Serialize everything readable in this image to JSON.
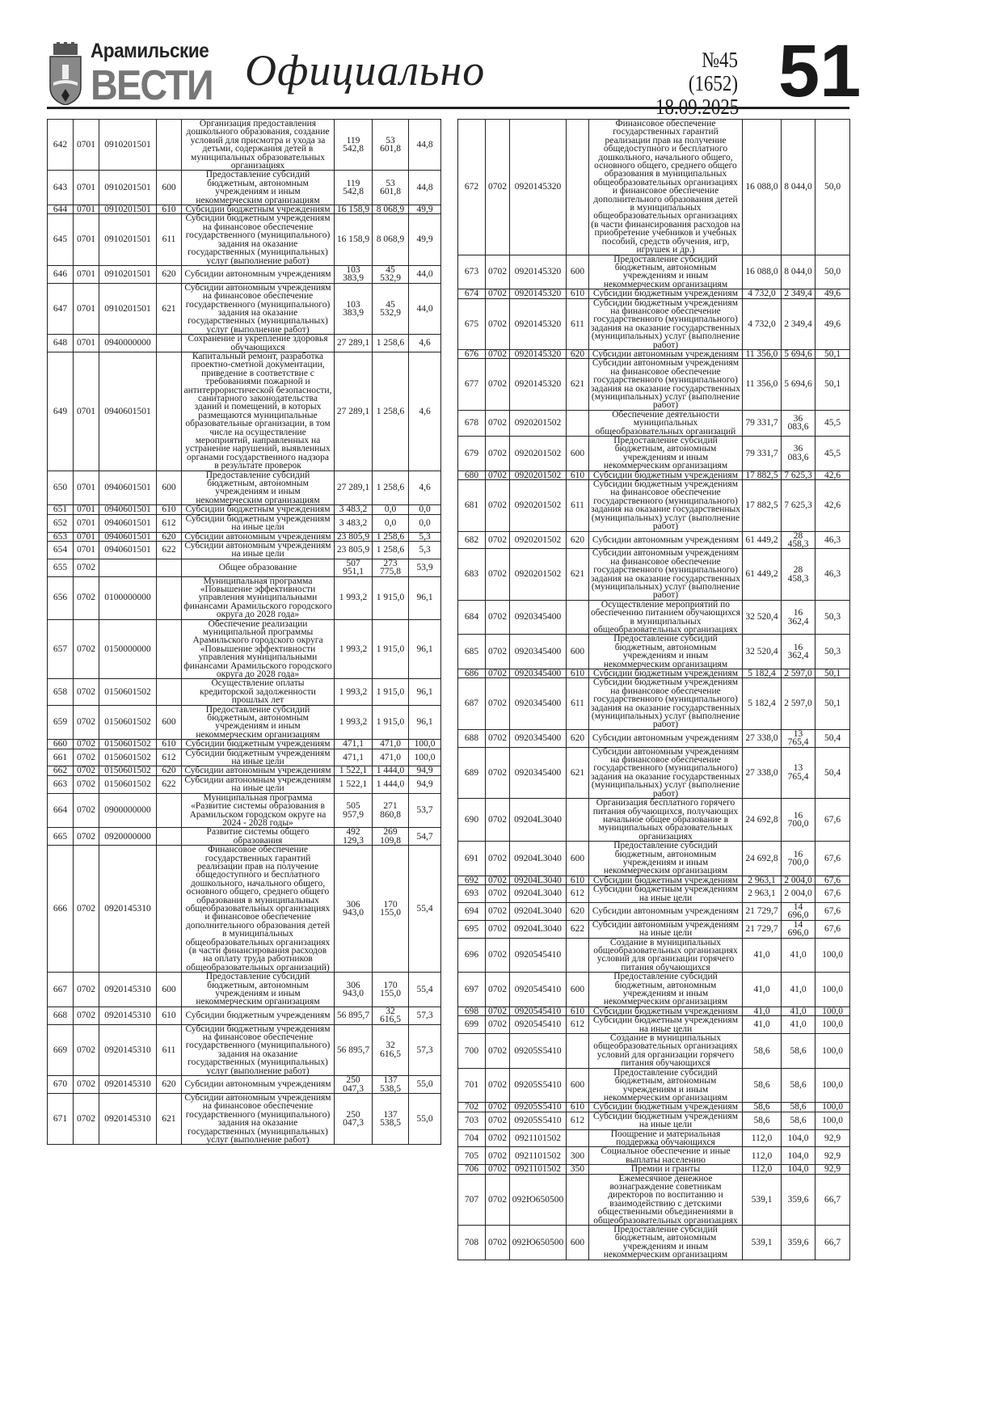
{
  "header": {
    "logo_line1": "Арамильские",
    "logo_line2": "ВЕСТИ",
    "section": "Официально",
    "issue": "№45 (1652)",
    "date": "18.09.2025",
    "page": "51"
  },
  "left_table": {
    "rows": [
      [
        "642",
        "0701",
        "0910201501",
        "",
        "Организация предоставления дошкольного образования, создание условий для присмотра и ухода за детьми, содержания детей в муниципальных образовательных организациях",
        "119 542,8",
        "53 601,8",
        "44,8"
      ],
      [
        "643",
        "0701",
        "0910201501",
        "600",
        "Предоставление субсидий бюджетным, автономным учреждениям и иным некоммерческим организациям",
        "119 542,8",
        "53 601,8",
        "44,8"
      ],
      [
        "644",
        "0701",
        "0910201501",
        "610",
        "Субсидии бюджетным учреждениям",
        "16 158,9",
        "8 068,9",
        "49,9"
      ],
      [
        "645",
        "0701",
        "0910201501",
        "611",
        "Субсидии бюджетным учреждениям на финансовое обеспечение государственного (муниципального) задания на оказание государственных (муниципальных) услуг (выполнение работ)",
        "16 158,9",
        "8 068,9",
        "49,9"
      ],
      [
        "646",
        "0701",
        "0910201501",
        "620",
        "Субсидии автономным учреждениям",
        "103 383,9",
        "45 532,9",
        "44,0"
      ],
      [
        "647",
        "0701",
        "0910201501",
        "621",
        "Субсидии автономным учреждениям на финансовое обеспечение государственного (муниципального) задания на оказание государственных (муниципальных) услуг (выполнение работ)",
        "103 383,9",
        "45 532,9",
        "44,0"
      ],
      [
        "648",
        "0701",
        "0940000000",
        "",
        "Сохранение и укрепление здоровья обучающихся",
        "27 289,1",
        "1 258,6",
        "4,6"
      ],
      [
        "649",
        "0701",
        "0940601501",
        "",
        "Капитальный ремонт, разработка проектно-сметной документации, приведение в соответствие с требованиями пожарной и антитеррористической безопасности, санитарного законодательства зданий и помещений, в которых размещаются муниципальные образовательные организации, в том числе на осуществление мероприятий, направленных на устранение нарушений, выявленных органами государственного надзора в результате проверок",
        "27 289,1",
        "1 258,6",
        "4,6"
      ],
      [
        "650",
        "0701",
        "0940601501",
        "600",
        "Предоставление субсидий бюджетным, автономным учреждениям и иным некоммерческим организациям",
        "27 289,1",
        "1 258,6",
        "4,6"
      ],
      [
        "651",
        "0701",
        "0940601501",
        "610",
        "Субсидии бюджетным учреждениям",
        "3 483,2",
        "0,0",
        "0,0"
      ],
      [
        "652",
        "0701",
        "0940601501",
        "612",
        "Субсидии бюджетным учреждениям на иные цели",
        "3 483,2",
        "0,0",
        "0,0"
      ],
      [
        "653",
        "0701",
        "0940601501",
        "620",
        "Субсидии автономным учреждениям",
        "23 805,9",
        "1 258,6",
        "5,3"
      ],
      [
        "654",
        "0701",
        "0940601501",
        "622",
        "Субсидии автономным учреждениям на иные цели",
        "23 805,9",
        "1 258,6",
        "5,3"
      ],
      [
        "655",
        "0702",
        "",
        "",
        "Общее образование",
        "507 951,1",
        "273 775,8",
        "53,9"
      ],
      [
        "656",
        "0702",
        "0100000000",
        "",
        "Муниципальная программа «Повышение эффективности управления муниципальными финансами Арамильского городского округа до 2028 года»",
        "1 993,2",
        "1 915,0",
        "96,1"
      ],
      [
        "657",
        "0702",
        "0150000000",
        "",
        "Обеспечение реализации муниципальной программы Арамильского городского округа «Повышение эффективности управления муниципальными финансами Арамильского городского округа до 2028 года»",
        "1 993,2",
        "1 915,0",
        "96,1"
      ],
      [
        "658",
        "0702",
        "0150601502",
        "",
        "Осуществление оплаты кредиторской задолженности прошлых лет",
        "1 993,2",
        "1 915,0",
        "96,1"
      ],
      [
        "659",
        "0702",
        "0150601502",
        "600",
        "Предоставление субсидий бюджетным, автономным учреждениям и иным некоммерческим организациям",
        "1 993,2",
        "1 915,0",
        "96,1"
      ],
      [
        "660",
        "0702",
        "0150601502",
        "610",
        "Субсидии бюджетным учреждениям",
        "471,1",
        "471,0",
        "100,0"
      ],
      [
        "661",
        "0702",
        "0150601502",
        "612",
        "Субсидии бюджетным учреждениям на иные цели",
        "471,1",
        "471,0",
        "100,0"
      ],
      [
        "662",
        "0702",
        "0150601502",
        "620",
        "Субсидии автономным учреждениям",
        "1 522,1",
        "1 444,0",
        "94,9"
      ],
      [
        "663",
        "0702",
        "0150601502",
        "622",
        "Субсидии автономным учреждениям на иные цели",
        "1 522,1",
        "1 444,0",
        "94,9"
      ],
      [
        "664",
        "0702",
        "0900000000",
        "",
        "Муниципальная программа «Развитие системы образования в Арамильском городском округе на 2024 - 2028 годы»",
        "505 957,9",
        "271 860,8",
        "53,7"
      ],
      [
        "665",
        "0702",
        "0920000000",
        "",
        "Развитие системы общего образования",
        "492 129,3",
        "269 109,8",
        "54,7"
      ],
      [
        "666",
        "0702",
        "0920145310",
        "",
        "Финансовое обеспечение государственных гарантий реализации прав на получение общедоступного и бесплатного дошкольного, начального общего, основного общего, среднего общего образования в муниципальных общеобразовательных организациях и финансовое обеспечение дополнительного образования детей в муниципальных общеобразовательных организациях (в части финансирования расходов на оплату труда работников общеобразовательных организаций)",
        "306 943,0",
        "170 155,0",
        "55,4"
      ],
      [
        "667",
        "0702",
        "0920145310",
        "600",
        "Предоставление субсидий бюджетным, автономным учреждениям и иным некоммерческим организациям",
        "306 943,0",
        "170 155,0",
        "55,4"
      ],
      [
        "668",
        "0702",
        "0920145310",
        "610",
        "Субсидии бюджетным учреждениям",
        "56 895,7",
        "32 616,5",
        "57,3"
      ],
      [
        "669",
        "0702",
        "0920145310",
        "611",
        "Субсидии бюджетным учреждениям на финансовое обеспечение государственного (муниципального) задания на оказание государственных (муниципальных) услуг (выполнение работ)",
        "56 895,7",
        "32 616,5",
        "57,3"
      ],
      [
        "670",
        "0702",
        "0920145310",
        "620",
        "Субсидии автономным учреждениям",
        "250 047,3",
        "137 538,5",
        "55,0"
      ],
      [
        "671",
        "0702",
        "0920145310",
        "621",
        "Субсидии автономным учреждениям на финансовое обеспечение государственного (муниципального) задания на оказание государственных (муниципальных) услуг (выполнение работ)",
        "250 047,3",
        "137 538,5",
        "55,0"
      ]
    ]
  },
  "right_table": {
    "rows": [
      [
        "672",
        "0702",
        "0920145320",
        "",
        "Финансовое обеспечение государственных гарантий реализации прав на получение общедоступного и бесплатного дошкольного, начального общего, основного общего, среднего общего образования в муниципальных общеобразовательных организациях и финансовое обеспечение дополнительного образования детей в муниципальных общеобразовательных организациях (в части финансирования расходов на приобретение учебников и учебных пособий, средств обучения, игр, игрушек и др.)",
        "16 088,0",
        "8 044,0",
        "50,0"
      ],
      [
        "673",
        "0702",
        "0920145320",
        "600",
        "Предоставление субсидий бюджетным, автономным учреждениям и иным некоммерческим организациям",
        "16 088,0",
        "8 044,0",
        "50,0"
      ],
      [
        "674",
        "0702",
        "0920145320",
        "610",
        "Субсидии бюджетным учреждениям",
        "4 732,0",
        "2 349,4",
        "49,6"
      ],
      [
        "675",
        "0702",
        "0920145320",
        "611",
        "Субсидии бюджетным учреждениям на финансовое обеспечение государственного (муниципального) задания на оказание государственных (муниципальных) услуг (выполнение работ)",
        "4 732,0",
        "2 349,4",
        "49,6"
      ],
      [
        "676",
        "0702",
        "0920145320",
        "620",
        "Субсидии автономным учреждениям",
        "11 356,0",
        "5 694,6",
        "50,1"
      ],
      [
        "677",
        "0702",
        "0920145320",
        "621",
        "Субсидии автономным учреждениям на финансовое обеспечение государственного (муниципального) задания на оказание государственных (муниципальных) услуг (выполнение работ)",
        "11 356,0",
        "5 694,6",
        "50,1"
      ],
      [
        "678",
        "0702",
        "0920201502",
        "",
        "Обеспечение деятельности муниципальных общеобразовательных организаций",
        "79 331,7",
        "36 083,6",
        "45,5"
      ],
      [
        "679",
        "0702",
        "0920201502",
        "600",
        "Предоставление субсидий бюджетным, автономным учреждениям и иным некоммерческим организациям",
        "79 331,7",
        "36 083,6",
        "45,5"
      ],
      [
        "680",
        "0702",
        "0920201502",
        "610",
        "Субсидии бюджетным учреждениям",
        "17 882,5",
        "7 625,3",
        "42,6"
      ],
      [
        "681",
        "0702",
        "0920201502",
        "611",
        "Субсидии бюджетным учреждениям на финансовое обеспечение государственного (муниципального) задания на оказание государственных (муниципальных) услуг (выполнение работ)",
        "17 882,5",
        "7 625,3",
        "42,6"
      ],
      [
        "682",
        "0702",
        "0920201502",
        "620",
        "Субсидии автономным учреждениям",
        "61 449,2",
        "28 458,3",
        "46,3"
      ],
      [
        "683",
        "0702",
        "0920201502",
        "621",
        "Субсидии автономным учреждениям на финансовое обеспечение государственного (муниципального) задания на оказание государственных (муниципальных) услуг (выполнение работ)",
        "61 449,2",
        "28 458,3",
        "46,3"
      ],
      [
        "684",
        "0702",
        "0920345400",
        "",
        "Осуществление мероприятий по обеспечению питанием обучающихся в муниципальных общеобразовательных организациях",
        "32 520,4",
        "16 362,4",
        "50,3"
      ],
      [
        "685",
        "0702",
        "0920345400",
        "600",
        "Предоставление субсидий бюджетным, автономным учреждениям и иным некоммерческим организациям",
        "32 520,4",
        "16 362,4",
        "50,3"
      ],
      [
        "686",
        "0702",
        "0920345400",
        "610",
        "Субсидии бюджетным учреждениям",
        "5 182,4",
        "2 597,0",
        "50,1"
      ],
      [
        "687",
        "0702",
        "0920345400",
        "611",
        "Субсидии бюджетным учреждениям на финансовое обеспечение государственного (муниципального) задания на оказание государственных (муниципальных) услуг (выполнение работ)",
        "5 182,4",
        "2 597,0",
        "50,1"
      ],
      [
        "688",
        "0702",
        "0920345400",
        "620",
        "Субсидии автономным учреждениям",
        "27 338,0",
        "13 765,4",
        "50,4"
      ],
      [
        "689",
        "0702",
        "0920345400",
        "621",
        "Субсидии автономным учреждениям на финансовое обеспечение государственного (муниципального) задания на оказание государственных (муниципальных) услуг (выполнение работ)",
        "27 338,0",
        "13 765,4",
        "50,4"
      ],
      [
        "690",
        "0702",
        "09204L3040",
        "",
        "Организация бесплатного горячего питания обучающихся, получающих начальное общее образование в муниципальных образовательных организациях",
        "24 692,8",
        "16 700,0",
        "67,6"
      ],
      [
        "691",
        "0702",
        "09204L3040",
        "600",
        "Предоставление субсидий бюджетным, автономным учреждениям и иным некоммерческим организациям",
        "24 692,8",
        "16 700,0",
        "67,6"
      ],
      [
        "692",
        "0702",
        "09204L3040",
        "610",
        "Субсидии бюджетным учреждениям",
        "2 963,1",
        "2 004,0",
        "67,6"
      ],
      [
        "693",
        "0702",
        "09204L3040",
        "612",
        "Субсидии бюджетным учреждениям на иные цели",
        "2 963,1",
        "2 004,0",
        "67,6"
      ],
      [
        "694",
        "0702",
        "09204L3040",
        "620",
        "Субсидии автономным учреждениям",
        "21 729,7",
        "14 696,0",
        "67,6"
      ],
      [
        "695",
        "0702",
        "09204L3040",
        "622",
        "Субсидии автономным учреждениям на иные цели",
        "21 729,7",
        "14 696,0",
        "67,6"
      ],
      [
        "696",
        "0702",
        "0920545410",
        "",
        "Создание в муниципальных общеобразовательных организациях условий для организации горячего питания обучающихся",
        "41,0",
        "41,0",
        "100,0"
      ],
      [
        "697",
        "0702",
        "0920545410",
        "600",
        "Предоставление субсидий бюджетным, автономным учреждениям и иным некоммерческим организациям",
        "41,0",
        "41,0",
        "100,0"
      ],
      [
        "698",
        "0702",
        "0920545410",
        "610",
        "Субсидии бюджетным учреждениям",
        "41,0",
        "41,0",
        "100,0"
      ],
      [
        "699",
        "0702",
        "0920545410",
        "612",
        "Субсидии бюджетным учреждениям на иные цели",
        "41,0",
        "41,0",
        "100,0"
      ],
      [
        "700",
        "0702",
        "09205S5410",
        "",
        "Создание в муниципальных общеобразовательных организациях условий для организации горячего питания обучающихся",
        "58,6",
        "58,6",
        "100,0"
      ],
      [
        "701",
        "0702",
        "09205S5410",
        "600",
        "Предоставление субсидий бюджетным, автономным учреждениям и иным некоммерческим организациям",
        "58,6",
        "58,6",
        "100,0"
      ],
      [
        "702",
        "0702",
        "09205S5410",
        "610",
        "Субсидии бюджетным учреждениям",
        "58,6",
        "58,6",
        "100,0"
      ],
      [
        "703",
        "0702",
        "09205S5410",
        "612",
        "Субсидии бюджетным учреждениям на иные цели",
        "58,6",
        "58,6",
        "100,0"
      ],
      [
        "704",
        "0702",
        "0921101502",
        "",
        "Поощрение и материальная поддержка обучающихся",
        "112,0",
        "104,0",
        "92,9"
      ],
      [
        "705",
        "0702",
        "0921101502",
        "300",
        "Социальное обеспечение и иные выплаты населению",
        "112,0",
        "104,0",
        "92,9"
      ],
      [
        "706",
        "0702",
        "0921101502",
        "350",
        "Премии и гранты",
        "112,0",
        "104,0",
        "92,9"
      ],
      [
        "707",
        "0702",
        "092Ю650500",
        "",
        "Ежемесячное денежное вознаграждение советникам директоров по воспитанию и взаимодействию с детскими общественными объединениями в общеобразовательных организациях",
        "539,1",
        "359,6",
        "66,7"
      ],
      [
        "708",
        "0702",
        "092Ю650500",
        "600",
        "Предоставление субсидий бюджетным, автономным учреждениям и иным некоммерческим организациям",
        "539,1",
        "359,6",
        "66,7"
      ]
    ]
  }
}
